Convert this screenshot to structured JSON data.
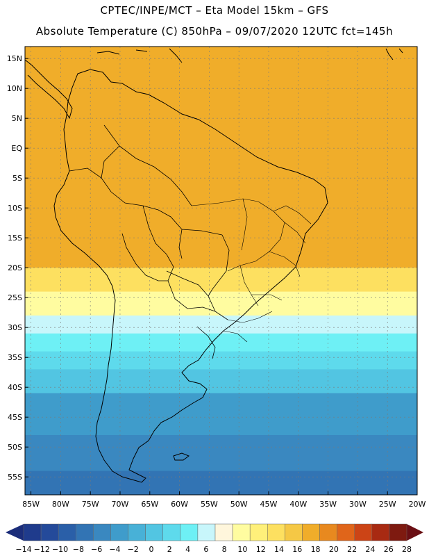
{
  "header": {
    "line1": "CPTEC/INPE/MCT –  Eta Model 15km – GFS",
    "line2": "Absolute Temperature (C) 850hPa – 09/07/2020 12UTC fct=145h"
  },
  "map": {
    "lat_labels": [
      "15N",
      "10N",
      "5N",
      "EQ",
      "5S",
      "10S",
      "15S",
      "20S",
      "25S",
      "30S",
      "35S",
      "40S",
      "45S",
      "50S",
      "55S"
    ],
    "lat_values": [
      15,
      10,
      5,
      0,
      -5,
      -10,
      -15,
      -20,
      -25,
      -30,
      -35,
      -40,
      -45,
      -50,
      -55
    ],
    "lon_labels": [
      "85W",
      "80W",
      "75W",
      "70W",
      "65W",
      "60W",
      "55W",
      "50W",
      "45W",
      "40W",
      "35W",
      "30W",
      "25W",
      "20W"
    ],
    "lon_values": [
      -85,
      -80,
      -75,
      -70,
      -65,
      -60,
      -55,
      -50,
      -45,
      -40,
      -35,
      -30,
      -25,
      -20
    ],
    "lon_range": [
      -86,
      -20
    ],
    "lat_range": [
      -58,
      17
    ],
    "grid": true,
    "temperature_bands": [
      {
        "lat_top": 17,
        "lat_bottom": -20,
        "value": 18
      },
      {
        "lat_top": -20,
        "lat_bottom": -24,
        "value": 14
      },
      {
        "lat_top": -24,
        "lat_bottom": -28,
        "value": 10
      },
      {
        "lat_top": -28,
        "lat_bottom": -31,
        "value": 6
      },
      {
        "lat_top": -31,
        "lat_bottom": -34,
        "value": 4
      },
      {
        "lat_top": -34,
        "lat_bottom": -37,
        "value": 2
      },
      {
        "lat_top": -37,
        "lat_bottom": -41,
        "value": 0
      },
      {
        "lat_top": -41,
        "lat_bottom": -48,
        "value": -4
      },
      {
        "lat_top": -48,
        "lat_bottom": -54,
        "value": -6
      },
      {
        "lat_top": -54,
        "lat_bottom": -58,
        "value": -8
      }
    ]
  },
  "colorbar": {
    "labels": [
      "-14",
      "-12",
      "-10",
      "-8",
      "-6",
      "-4",
      "-2",
      "0",
      "2",
      "4",
      "6",
      "8",
      "10",
      "12",
      "14",
      "16",
      "18",
      "20",
      "22",
      "24",
      "26",
      "28"
    ],
    "colors": [
      "#1f3b8c",
      "#244a9a",
      "#2a5fa8",
      "#3274b4",
      "#3a88c0",
      "#3f9ccb",
      "#48b1d7",
      "#52c5e2",
      "#5edaec",
      "#6ef0f5",
      "#c8f6fb",
      "#fff6dc",
      "#fffca0",
      "#fff07a",
      "#fde060",
      "#f5c845",
      "#f0ad2a",
      "#e8891f",
      "#e0651a",
      "#cc4416",
      "#a82a12",
      "#7e1a10"
    ],
    "left_arrow_color": "#1b2d7a",
    "right_arrow_color": "#6b0f14"
  },
  "colors": {
    "coast": "#000000",
    "grid": "#7a7a7a"
  }
}
